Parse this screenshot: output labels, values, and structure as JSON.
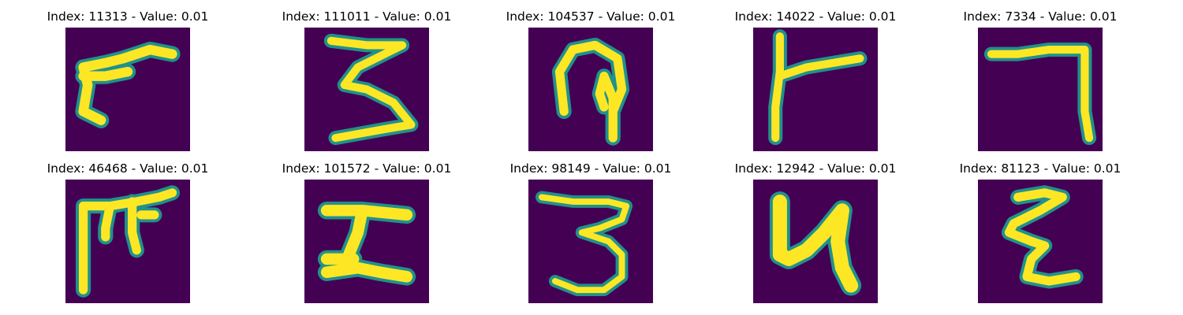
{
  "figure": {
    "background": "#ffffff",
    "colormap": {
      "low": "#440154",
      "mid": "#21918c",
      "high": "#fde725"
    },
    "panels": [
      {
        "title": "Index: 11313 - Value: 0.01"
      },
      {
        "title": "Index: 111011 - Value: 0.01"
      },
      {
        "title": "Index: 104537 - Value: 0.01"
      },
      {
        "title": "Index: 14022 - Value: 0.01"
      },
      {
        "title": "Index: 7334 - Value: 0.01"
      },
      {
        "title": "Index: 46468 - Value: 0.01"
      },
      {
        "title": "Index: 101572 - Value: 0.01"
      },
      {
        "title": "Index: 98149 - Value: 0.01"
      },
      {
        "title": "Index: 12942 - Value: 0.01"
      },
      {
        "title": "Index: 81123 - Value: 0.01"
      }
    ]
  }
}
